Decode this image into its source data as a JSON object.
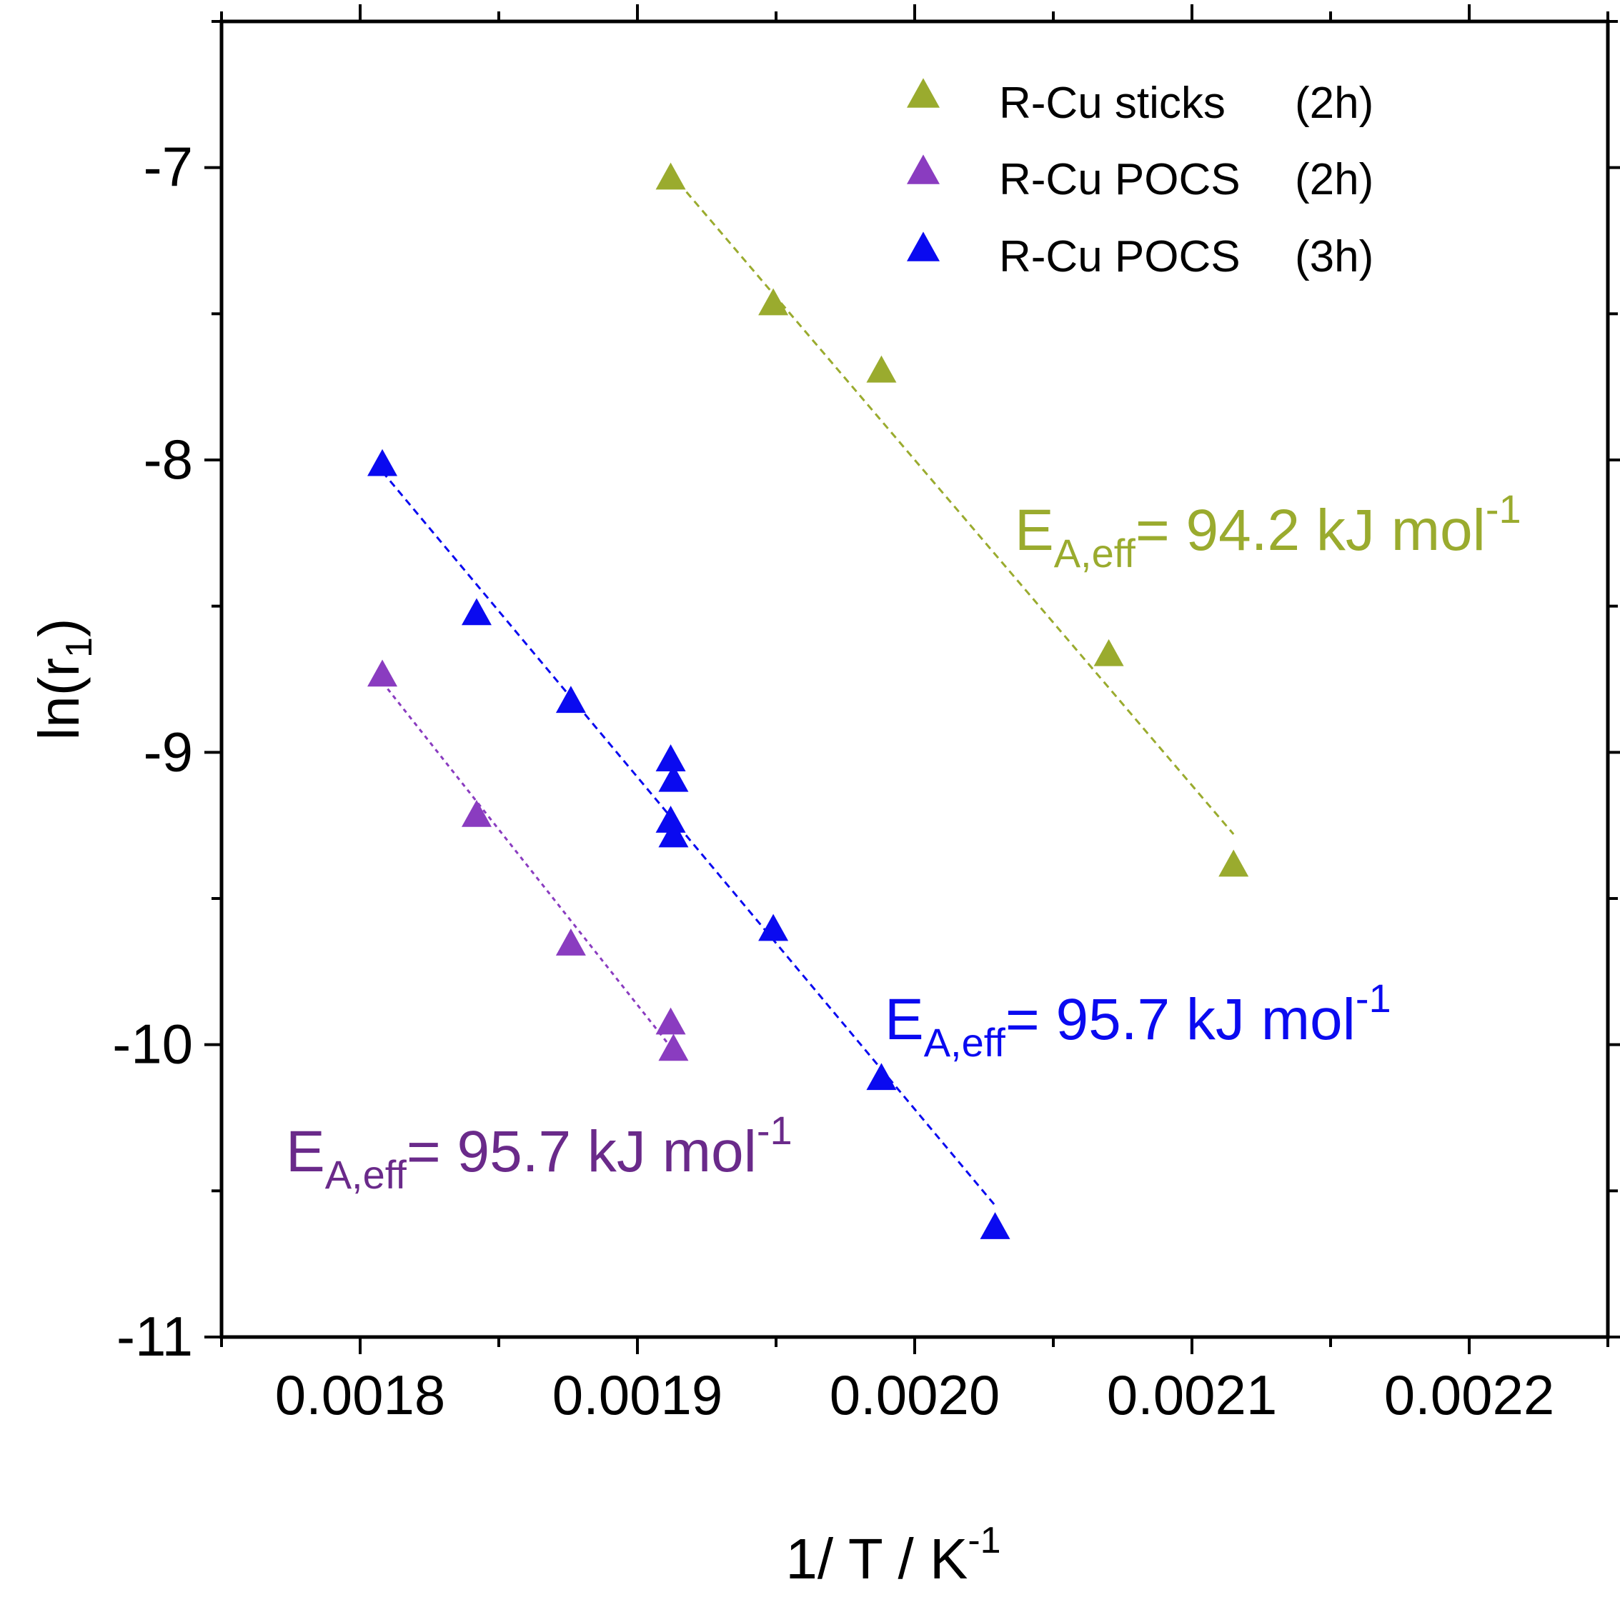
{
  "chart_data": {
    "type": "scatter",
    "title": "",
    "xlabel": "1/ T  /  K",
    "xlabel_sup": "-1",
    "ylabel_main": "ln(r",
    "ylabel_sub": "1",
    "ylabel_close": ")",
    "xlim": [
      0.00175,
      0.00225
    ],
    "ylim": [
      -11,
      -6.5
    ],
    "xticks": [
      0.0018,
      0.0019,
      0.002,
      0.0021,
      0.0022
    ],
    "xtick_labels": [
      "0.0018",
      "0.0019",
      "0.0020",
      "0.0021",
      "0.0022"
    ],
    "yticks": [
      -11,
      -10,
      -9,
      -8,
      -7
    ],
    "ytick_labels": [
      "-11",
      "-10",
      "-9",
      "-8",
      "-7"
    ],
    "legend_position": "top-right",
    "series": [
      {
        "name": "R-Cu sticks",
        "duration": "(2h)",
        "color": "#9aab2e",
        "marker": "triangle-up",
        "x": [
          0.001912,
          0.001949,
          0.001988,
          0.00207,
          0.002115
        ],
        "y": [
          -7.04,
          -7.47,
          -7.7,
          -8.67,
          -9.39
        ],
        "fit": {
          "x": [
            0.001912,
            0.002115
          ],
          "y": [
            -7.02,
            -9.28
          ]
        },
        "annotation": {
          "main": "E",
          "sub": "A,eff",
          "rest": "= 94.2 kJ mol",
          "sup": "-1"
        }
      },
      {
        "name": "R-Cu POCS",
        "duration": "(2h)",
        "color": "#8a3cc0",
        "annotation_color": "#6a2a8a",
        "marker": "triangle-up",
        "x": [
          0.001808,
          0.001842,
          0.001876,
          0.001912,
          0.001913
        ],
        "y": [
          -8.74,
          -9.22,
          -9.66,
          -9.93,
          -10.02
        ],
        "fit": {
          "x": [
            0.001808,
            0.001913
          ],
          "y": [
            -8.76,
            -10.02
          ]
        },
        "annotation": {
          "main": "E",
          "sub": "A,eff",
          "rest": "= 95.7 kJ mol",
          "sup": "-1"
        }
      },
      {
        "name": "R-Cu POCS",
        "duration": "(3h)",
        "color": "#0a0af0",
        "marker": "triangle-up",
        "x": [
          0.001808,
          0.001842,
          0.001876,
          0.001912,
          0.001913,
          0.001912,
          0.001913,
          0.001949,
          0.001988,
          0.002029
        ],
        "y": [
          -8.02,
          -8.53,
          -8.83,
          -9.03,
          -9.1,
          -9.24,
          -9.29,
          -9.61,
          -10.12,
          -10.63
        ],
        "fit": {
          "x": [
            0.001808,
            0.002029
          ],
          "y": [
            -8.04,
            -10.55
          ]
        },
        "annotation": {
          "main": "E",
          "sub": "A,eff",
          "rest": "= 95.7 kJ mol",
          "sup": "-1"
        }
      }
    ]
  }
}
